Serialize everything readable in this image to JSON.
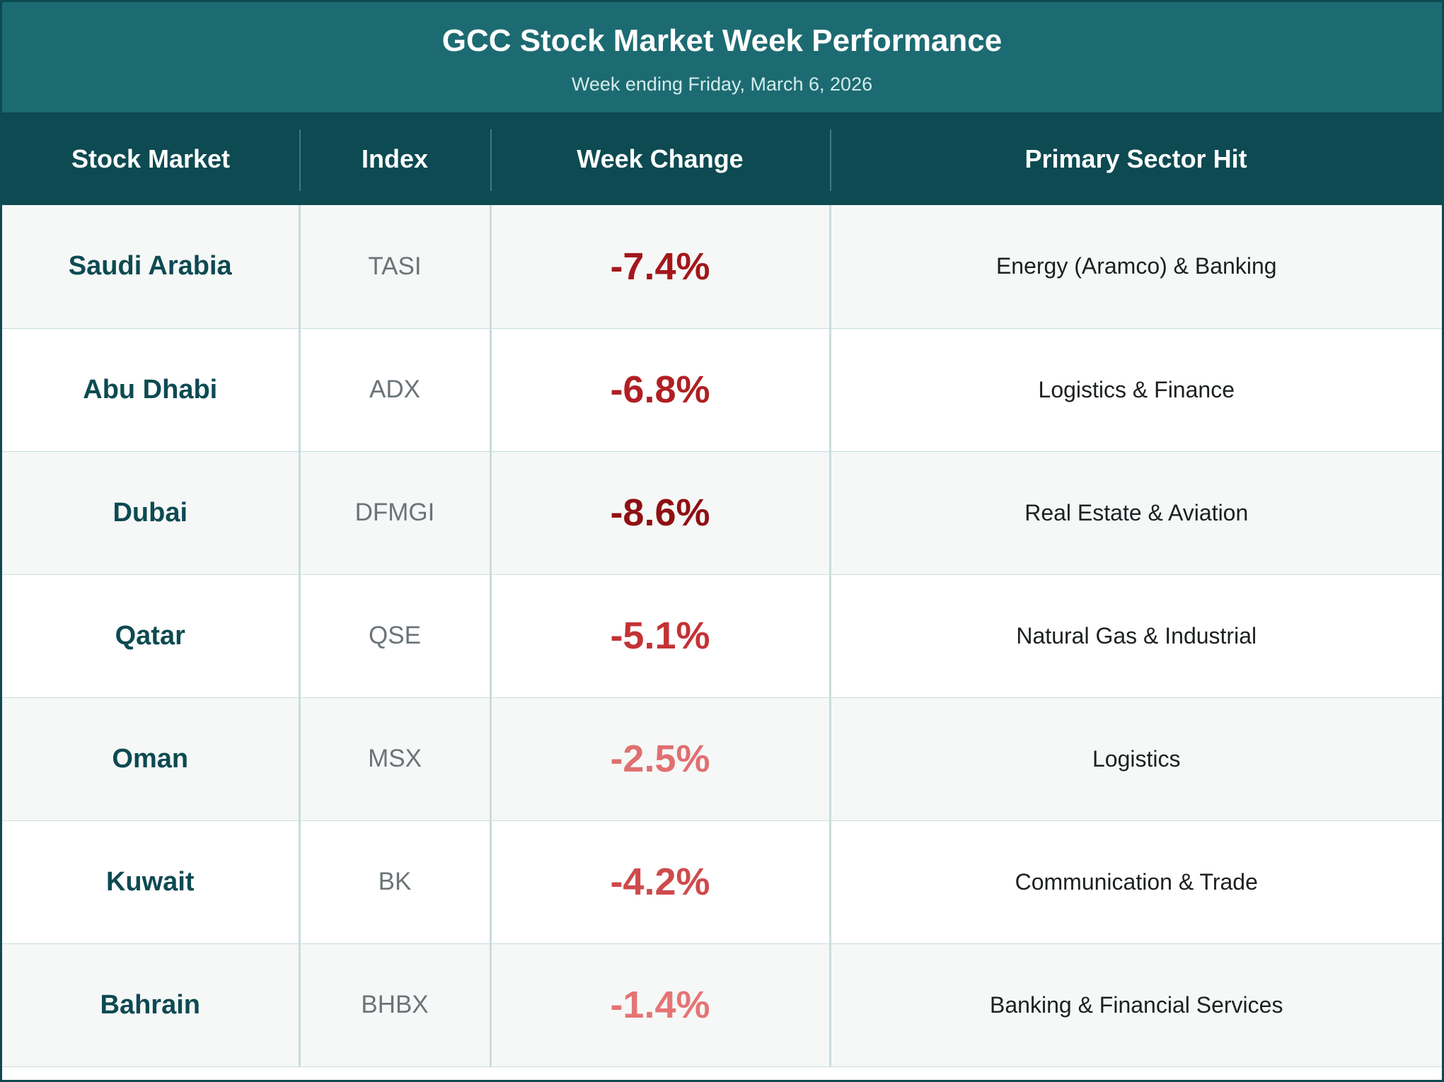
{
  "chart_data": {
    "type": "table",
    "title": "GCC Stock Market Week Performance",
    "subtitle": "Week ending Friday, March 6, 2026",
    "columns": [
      "Stock Market",
      "Index",
      "Week Change",
      "Primary Sector Hit"
    ],
    "rows": [
      {
        "market": "Saudi Arabia",
        "index": "TASI",
        "change": "-7.4%",
        "change_value": -7.4,
        "sector": "Energy (Aramco) & Banking",
        "color": "#a3171b"
      },
      {
        "market": "Abu Dhabi",
        "index": "ADX",
        "change": "-6.8%",
        "change_value": -6.8,
        "sector": "Logistics & Finance",
        "color": "#b01f23"
      },
      {
        "market": "Dubai",
        "index": "DFMGI",
        "change": "-8.6%",
        "change_value": -8.6,
        "sector": "Real Estate & Aviation",
        "color": "#8f1013"
      },
      {
        "market": "Qatar",
        "index": "QSE",
        "change": "-5.1%",
        "change_value": -5.1,
        "sector": "Natural Gas & Industrial",
        "color": "#c43235"
      },
      {
        "market": "Oman",
        "index": "MSX",
        "change": "-2.5%",
        "change_value": -2.5,
        "sector": "Logistics",
        "color": "#e07070"
      },
      {
        "market": "Kuwait",
        "index": "BK",
        "change": "-4.2%",
        "change_value": -4.2,
        "sector": "Communication & Trade",
        "color": "#cf4a4c"
      },
      {
        "market": "Bahrain",
        "index": "BHBX",
        "change": "-1.4%",
        "change_value": -1.4,
        "sector": "Banking & Financial Services",
        "color": "#e57575"
      }
    ]
  }
}
